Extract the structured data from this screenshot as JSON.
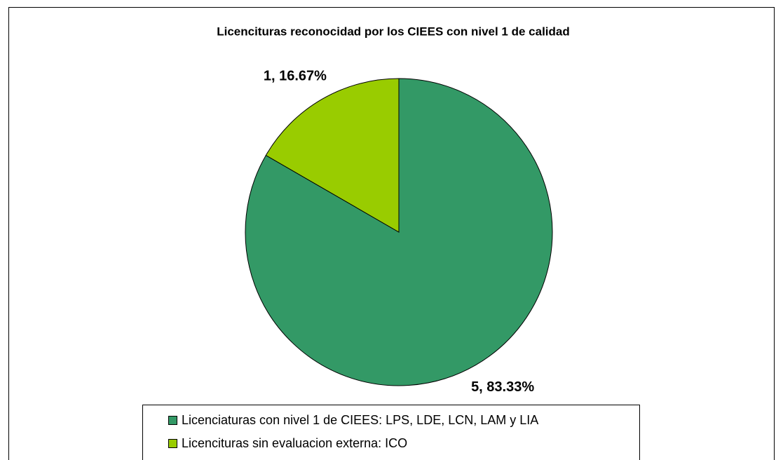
{
  "chart_data": {
    "type": "pie",
    "title": "Licencituras  reconocidad por los CIEES con nivel 1 de calidad",
    "categories": [
      "Licenciaturas con nivel 1 de CIEES: LPS, LDE, LCN, LAM y LIA",
      "Licencituras sin evaluacion externa: ICO"
    ],
    "values": [
      5,
      1
    ],
    "value_labels": [
      "5, 83.33%",
      "1, 16.67%"
    ],
    "colors": [
      "#339966",
      "#99cc00"
    ]
  }
}
